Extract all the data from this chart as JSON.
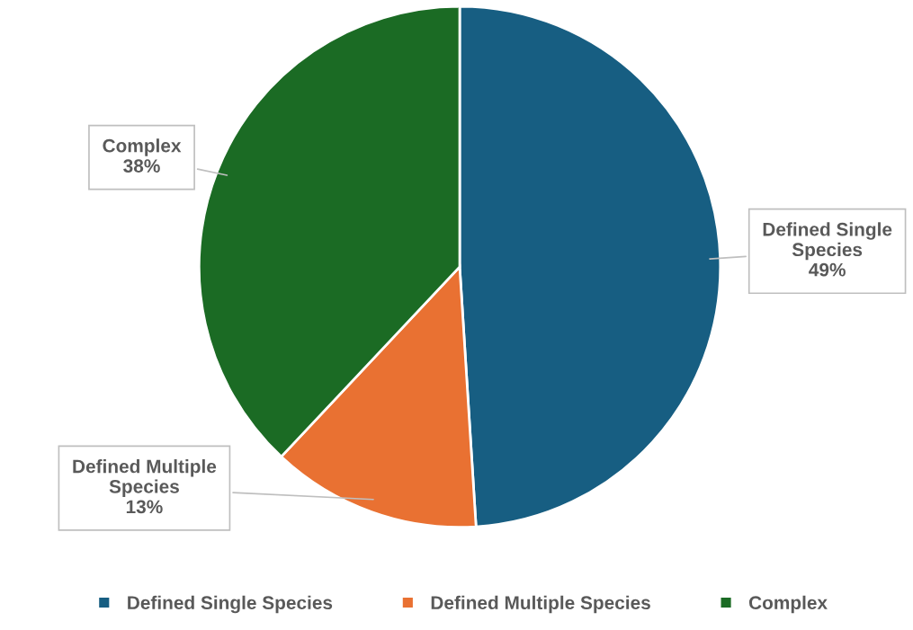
{
  "chart_data": {
    "type": "pie",
    "categories": [
      "Defined Single Species",
      "Defined Multiple Species",
      "Complex"
    ],
    "values": [
      49,
      13,
      38
    ],
    "colors": [
      "#175e82",
      "#e97132",
      "#1b6b24"
    ],
    "value_labels": [
      "49%",
      "13%",
      "38%"
    ],
    "legend": "bottom"
  }
}
